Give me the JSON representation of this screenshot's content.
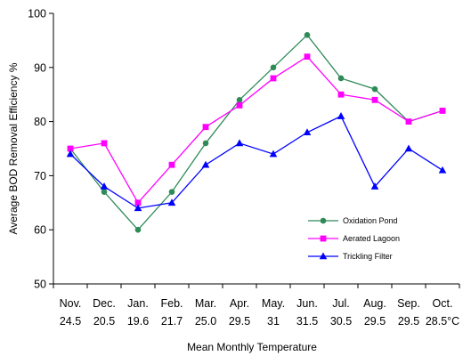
{
  "chart_data": {
    "type": "line",
    "xlabel": "Mean Monthly Temperature",
    "ylabel": "Average BOD Removal Efficiency %",
    "ylim": [
      50,
      100
    ],
    "yticks": [
      "50",
      "60",
      "70",
      "80",
      "90",
      "100"
    ],
    "grid": false,
    "legend_position": "bottom-right",
    "categories": [
      "Nov.",
      "Dec.",
      "Jan.",
      "Feb.",
      "Mar.",
      "Apr.",
      "May.",
      "Jun.",
      "Jul.",
      "Aug.",
      "Sep.",
      "Oct."
    ],
    "temperatures": [
      "24.5",
      "20.5",
      "19.6",
      "21.7",
      "25.0",
      "29.5",
      "31",
      "31.5",
      "30.5",
      "29.5",
      "29.5",
      "28.5°C"
    ],
    "series": [
      {
        "name": "Oxidation Pond",
        "color": "#2e8b57",
        "marker": "circle",
        "values": [
          75,
          67,
          60,
          67,
          76,
          84,
          90,
          96,
          88,
          86,
          80,
          82
        ]
      },
      {
        "name": "Aerated Lagoon",
        "color": "#ff00ff",
        "marker": "square",
        "values": [
          75,
          76,
          65,
          72,
          79,
          83,
          88,
          92,
          85,
          84,
          80,
          82
        ]
      },
      {
        "name": "Trickling Filter",
        "color": "#0000ff",
        "marker": "triangle",
        "values": [
          74,
          68,
          64,
          65,
          72,
          76,
          74,
          78,
          81,
          68,
          75,
          71
        ]
      }
    ]
  }
}
